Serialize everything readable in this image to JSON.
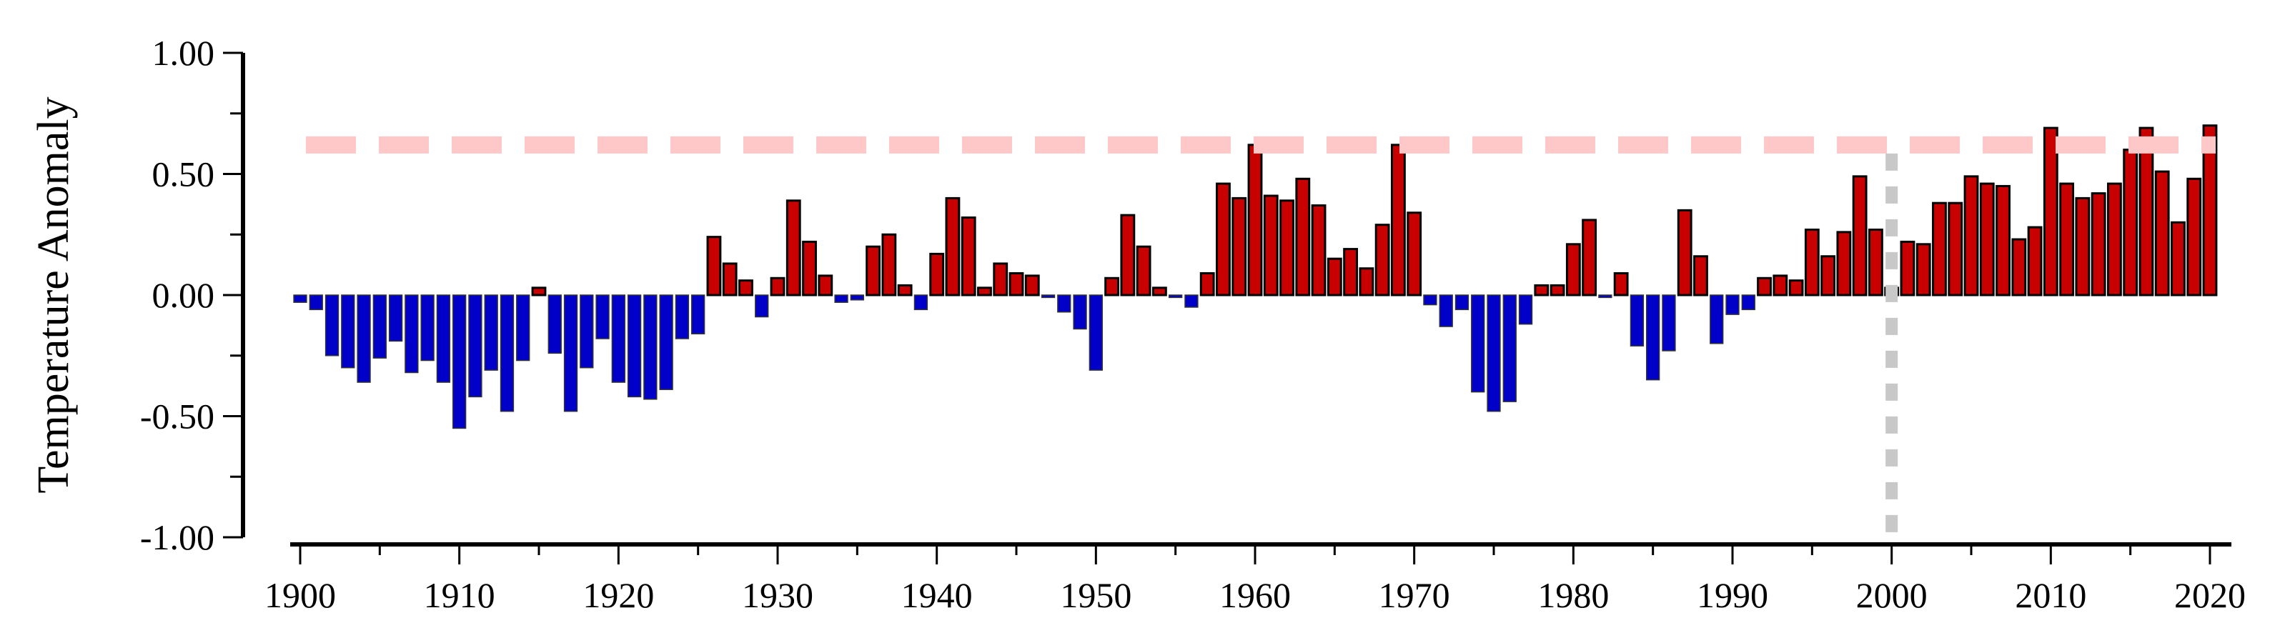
{
  "chart_data": {
    "type": "bar",
    "title": "",
    "xlabel": "",
    "ylabel": "Temperature Anomaly",
    "xlim": [
      1900,
      2020
    ],
    "ylim": [
      -1.0,
      1.0
    ],
    "grid": false,
    "x_ticks": [
      "1900",
      "1910",
      "1920",
      "1930",
      "1940",
      "1950",
      "1960",
      "1970",
      "1980",
      "1990",
      "2000",
      "2010",
      "2020"
    ],
    "y_ticks": [
      "1.00",
      "0.50",
      "0.00",
      "-0.50",
      "-1.00"
    ],
    "colors": {
      "positive": "#c80000",
      "negative": "#0000c8",
      "reference_line": "#ffc8c8",
      "marker_line": "#c8c8c8"
    },
    "reference_line": {
      "orientation": "horizontal",
      "y": 0.62,
      "style": "dashed"
    },
    "marker_line": {
      "orientation": "vertical",
      "x": 2000,
      "style": "dotted"
    },
    "x_start": 1900,
    "values": [
      -0.03,
      -0.06,
      -0.25,
      -0.3,
      -0.36,
      -0.26,
      -0.19,
      -0.32,
      -0.27,
      -0.36,
      -0.55,
      -0.42,
      -0.31,
      -0.48,
      -0.27,
      0.03,
      -0.24,
      -0.48,
      -0.3,
      -0.18,
      -0.36,
      -0.42,
      -0.43,
      -0.39,
      -0.18,
      -0.16,
      0.24,
      0.13,
      0.06,
      -0.09,
      0.07,
      0.39,
      0.22,
      0.08,
      -0.03,
      -0.02,
      0.2,
      0.25,
      0.04,
      -0.06,
      0.17,
      0.4,
      0.32,
      0.03,
      0.13,
      0.09,
      0.08,
      -0.01,
      -0.07,
      -0.14,
      -0.31,
      0.07,
      0.33,
      0.2,
      0.03,
      -0.01,
      -0.05,
      0.09,
      0.46,
      0.4,
      0.62,
      0.41,
      0.39,
      0.48,
      0.37,
      0.15,
      0.19,
      0.11,
      0.29,
      0.62,
      0.34,
      -0.04,
      -0.13,
      -0.06,
      -0.4,
      -0.48,
      -0.44,
      -0.12,
      0.04,
      0.04,
      0.21,
      0.31,
      -0.01,
      0.09,
      -0.21,
      -0.35,
      -0.23,
      0.35,
      0.16,
      -0.2,
      -0.08,
      -0.06,
      0.07,
      0.08,
      0.06,
      0.27,
      0.16,
      0.26,
      0.49,
      0.27,
      0.03,
      0.22,
      0.21,
      0.38,
      0.38,
      0.49,
      0.46,
      0.45,
      0.23,
      0.28,
      0.69,
      0.46,
      0.4,
      0.42,
      0.46,
      0.6,
      0.69,
      0.51,
      0.3,
      0.48,
      0.7
    ]
  }
}
